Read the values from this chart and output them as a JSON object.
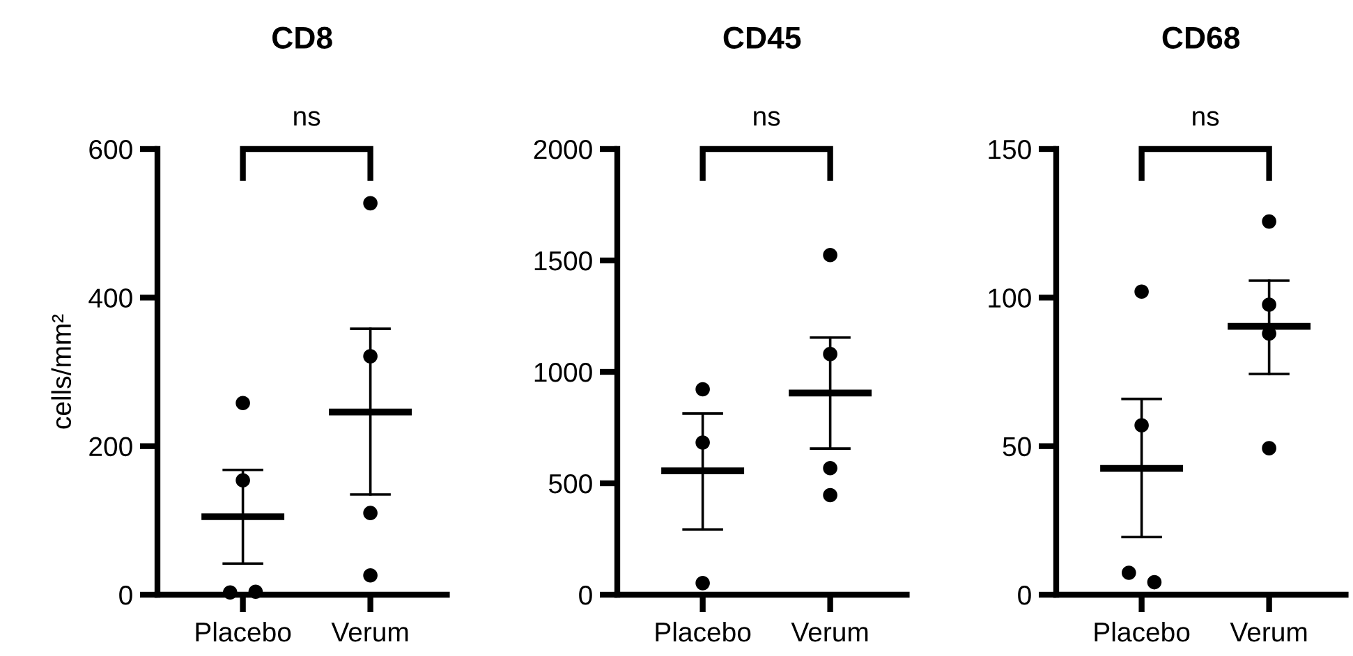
{
  "chart_data": [
    {
      "type": "box",
      "title": "CD8",
      "ylabel": "cells/mm²",
      "categories": [
        "Placebo",
        "Verum"
      ],
      "ylim": [
        0,
        600
      ],
      "yticks": [
        0,
        200,
        400,
        600
      ],
      "marker": "circle",
      "annotations": [
        "ns"
      ],
      "boxes": [
        {
          "low": 42,
          "q1": 105,
          "median": 105,
          "q3": 105,
          "high": 168
        },
        {
          "low": 135,
          "q1": 246,
          "median": 246,
          "q3": 246,
          "high": 358
        }
      ],
      "series": [
        {
          "type": "scatter",
          "color": "#000000",
          "x": [
            "Placebo",
            "Placebo",
            "Placebo",
            "Placebo",
            "Verum",
            "Verum",
            "Verum",
            "Verum"
          ],
          "values": [
            258,
            154,
            3,
            4,
            527,
            321,
            110,
            26
          ]
        }
      ]
    },
    {
      "type": "box",
      "title": "CD45",
      "categories": [
        "Placebo",
        "Verum"
      ],
      "ylim": [
        0,
        2000
      ],
      "yticks": [
        0,
        500,
        1000,
        1500,
        2000
      ],
      "marker": "circle",
      "annotations": [
        "ns"
      ],
      "boxes": [
        {
          "low": 293,
          "q1": 556,
          "median": 556,
          "q3": 556,
          "high": 813
        },
        {
          "low": 656,
          "q1": 905,
          "median": 905,
          "q3": 905,
          "high": 1154
        }
      ],
      "series": [
        {
          "type": "scatter",
          "color": "#000000",
          "x": [
            "Placebo",
            "Placebo",
            "Placebo",
            "Verum",
            "Verum",
            "Verum",
            "Verum"
          ],
          "values": [
            922,
            683,
            52,
            1524,
            1080,
            568,
            447
          ]
        }
      ]
    },
    {
      "type": "box",
      "title": "CD68",
      "categories": [
        "Placebo",
        "Verum"
      ],
      "ylim": [
        0,
        150
      ],
      "yticks": [
        0,
        50,
        100,
        150
      ],
      "marker": "circle",
      "annotations": [
        "ns"
      ],
      "boxes": [
        {
          "low": 19.4,
          "q1": 42.5,
          "median": 42.5,
          "q3": 42.5,
          "high": 65.9
        },
        {
          "low": 74.3,
          "q1": 90.3,
          "median": 90.3,
          "q3": 90.3,
          "high": 105.7
        }
      ],
      "series": [
        {
          "type": "scatter",
          "color": "#000000",
          "x": [
            "Placebo",
            "Placebo",
            "Placebo",
            "Placebo",
            "Verum",
            "Verum",
            "Verum",
            "Verum"
          ],
          "values": [
            102,
            57,
            7.4,
            4.2,
            125.6,
            97.6,
            87.9,
            49.3
          ]
        }
      ]
    }
  ]
}
